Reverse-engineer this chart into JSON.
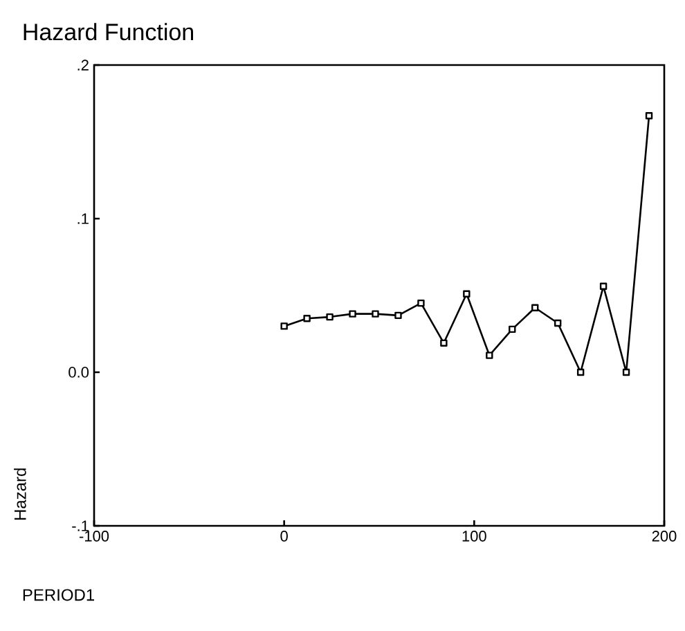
{
  "chart_data": {
    "type": "line",
    "title": "Hazard Function",
    "xlabel": "PERIOD1",
    "ylabel": "Hazard",
    "x": [
      0,
      12,
      24,
      36,
      48,
      60,
      72,
      84,
      96,
      108,
      120,
      132,
      144,
      156,
      168,
      180,
      192
    ],
    "series": [
      {
        "color": "#000000",
        "values": [
          0.03,
          0.035,
          0.036,
          0.038,
          0.038,
          0.037,
          0.045,
          0.019,
          0.051,
          0.011,
          0.028,
          0.042,
          0.032,
          0.0,
          0.056,
          0.0,
          0.167
        ]
      }
    ],
    "xlim": [
      -100,
      200
    ],
    "xticks": [
      -100,
      0,
      100,
      200
    ],
    "ylim": [
      -0.1,
      0.2
    ],
    "yticks": [
      {
        "value": -0.1,
        "label": "-.1"
      },
      {
        "value": 0,
        "label": "0.0"
      },
      {
        "value": 0.1,
        "label": ".1"
      },
      {
        "value": 0.2,
        "label": ".2"
      }
    ],
    "marker": "square",
    "line_style": "solid"
  }
}
